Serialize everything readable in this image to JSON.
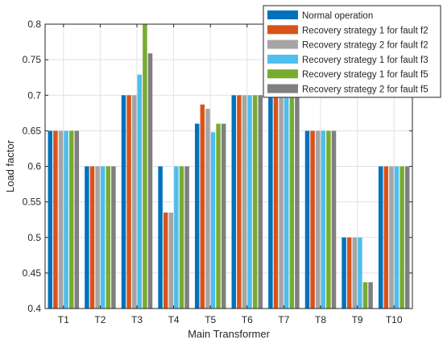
{
  "chart_data": {
    "type": "bar",
    "title": "",
    "xlabel": "Main Transformer",
    "ylabel": "Load factor",
    "ylim": [
      0.4,
      0.8
    ],
    "yticks": [
      0.4,
      0.45,
      0.5,
      0.55,
      0.6,
      0.65,
      0.7,
      0.75,
      0.8
    ],
    "ytick_labels": [
      "0.4",
      "0.45",
      "0.5",
      "0.55",
      "0.6",
      "0.65",
      "0.7",
      "0.75",
      "0.8"
    ],
    "grid": true,
    "legend_position": "top-right",
    "categories": [
      "T1",
      "T2",
      "T3",
      "T4",
      "T5",
      "T6",
      "T7",
      "T8",
      "T9",
      "T10"
    ],
    "series": [
      {
        "name": "Normal operation",
        "color": "#0072BD",
        "values": [
          0.65,
          0.6,
          0.7,
          0.6,
          0.66,
          0.7,
          0.7,
          0.65,
          0.5,
          0.6
        ]
      },
      {
        "name": "Recovery strategy 1 for fault f2",
        "color": "#D95319",
        "values": [
          0.65,
          0.6,
          0.7,
          0.535,
          0.687,
          0.7,
          0.7,
          0.65,
          0.5,
          0.6
        ]
      },
      {
        "name": "Recovery strategy 2 for fault f2",
        "color": "#A5A5A5",
        "values": [
          0.65,
          0.6,
          0.7,
          0.535,
          0.681,
          0.7,
          0.7,
          0.65,
          0.5,
          0.6
        ]
      },
      {
        "name": "Recovery strategy 1 for fault f3",
        "color": "#4DBEEE",
        "values": [
          0.65,
          0.6,
          0.729,
          0.6,
          0.648,
          0.7,
          0.7,
          0.65,
          0.5,
          0.6
        ]
      },
      {
        "name": "Recovery strategy 1 for fault f5",
        "color": "#77AC30",
        "values": [
          0.65,
          0.6,
          0.8,
          0.6,
          0.66,
          0.7,
          0.7,
          0.65,
          0.437,
          0.6
        ]
      },
      {
        "name": "Recovery strategy 2 for fault f5",
        "color": "#7F7F7F",
        "values": [
          0.65,
          0.6,
          0.759,
          0.6,
          0.66,
          0.7,
          0.7,
          0.65,
          0.437,
          0.6
        ]
      }
    ]
  }
}
